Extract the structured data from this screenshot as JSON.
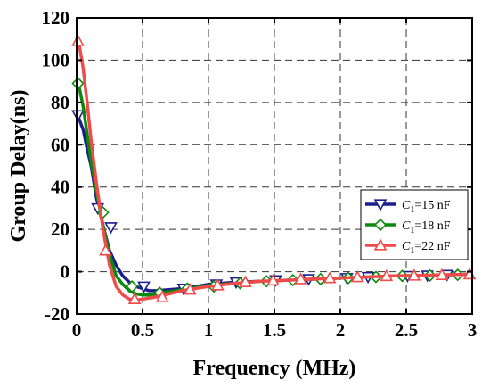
{
  "chart_data": {
    "type": "line",
    "xlabel": "Frequency (MHz)",
    "ylabel": "Group Delay(ns)",
    "xlim": [
      0,
      3
    ],
    "ylim": [
      -20,
      120
    ],
    "xticks": [
      0,
      0.5,
      1,
      1.5,
      2,
      2.5,
      3
    ],
    "xtick_labels": [
      "0",
      "0.5",
      "1",
      "1.5",
      "2",
      "2.5",
      "3"
    ],
    "yticks": [
      -20,
      0,
      20,
      40,
      60,
      80,
      100,
      120
    ],
    "ytick_labels": [
      "-20",
      "0",
      "20",
      "40",
      "60",
      "80",
      "100",
      "120"
    ],
    "grid": true,
    "legend_position": "right",
    "series": [
      {
        "name": "C1=15 nF",
        "name_var": "C",
        "name_sub": "1",
        "name_rest": "=15 nF",
        "color": "#1b1f8a",
        "marker": "triangle-down",
        "x": [
          0,
          0.02,
          0.05,
          0.08,
          0.11,
          0.15,
          0.2,
          0.25,
          0.3,
          0.35,
          0.4,
          0.45,
          0.5,
          0.55,
          0.6,
          0.7,
          0.8,
          0.9,
          1.0,
          1.2,
          1.4,
          1.6,
          1.8,
          2.0,
          2.2,
          2.4,
          2.6,
          2.8,
          3.0
        ],
        "y": [
          75,
          72,
          67,
          58,
          50,
          35,
          22,
          10,
          3,
          -2,
          -5,
          -7,
          -8,
          -9,
          -9,
          -8.5,
          -8,
          -7,
          -6,
          -5,
          -4.5,
          -4,
          -3.5,
          -3,
          -2.5,
          -2,
          -1.8,
          -1.5,
          -1.2
        ],
        "marker_x": [
          0.01,
          0.16,
          0.26,
          0.51,
          0.81,
          1.06,
          1.21,
          1.51,
          1.76,
          2.05,
          2.21,
          2.51,
          2.66,
          2.81
        ],
        "marker_y": [
          74,
          30,
          21,
          -7,
          -8,
          -6,
          -5,
          -4,
          -3.5,
          -3,
          -2.5,
          -2,
          -1.8,
          -1.5
        ]
      },
      {
        "name": "C1=18 nF",
        "name_var": "C",
        "name_sub": "1",
        "name_rest": "=18 nF",
        "color": "#0d8a0d",
        "marker": "diamond",
        "x": [
          0,
          0.02,
          0.05,
          0.08,
          0.11,
          0.15,
          0.2,
          0.25,
          0.3,
          0.35,
          0.4,
          0.45,
          0.5,
          0.55,
          0.6,
          0.7,
          0.8,
          0.9,
          1.0,
          1.2,
          1.4,
          1.6,
          1.8,
          2.0,
          2.2,
          2.4,
          2.6,
          2.8,
          3.0
        ],
        "y": [
          90,
          87,
          78,
          65,
          52,
          38,
          22,
          8,
          -2,
          -6,
          -9,
          -10.5,
          -11,
          -11,
          -10.5,
          -9.5,
          -8.5,
          -7.5,
          -6.5,
          -5.5,
          -4.5,
          -4,
          -3.5,
          -3,
          -2.5,
          -2,
          -1.8,
          -1.5,
          -1.2
        ],
        "marker_x": [
          0.01,
          0.2,
          0.42,
          0.63,
          0.84,
          1.04,
          1.24,
          1.44,
          1.64,
          1.85,
          2.06,
          2.27,
          2.47,
          2.68,
          2.89
        ],
        "marker_y": [
          89,
          28,
          -7,
          -10,
          -8,
          -7,
          -5.5,
          -4.5,
          -4,
          -3.5,
          -3,
          -2.5,
          -2,
          -1.8,
          -1.5
        ]
      },
      {
        "name": "C1=22 nF",
        "name_var": "C",
        "name_sub": "1",
        "name_rest": "=22 nF",
        "color": "#f04a4a",
        "marker": "triangle-up",
        "x": [
          0,
          0.02,
          0.05,
          0.08,
          0.11,
          0.15,
          0.2,
          0.25,
          0.3,
          0.35,
          0.4,
          0.45,
          0.5,
          0.55,
          0.6,
          0.7,
          0.8,
          0.9,
          1.0,
          1.2,
          1.4,
          1.6,
          1.8,
          2.0,
          2.2,
          2.4,
          2.6,
          2.8,
          3.0
        ],
        "y": [
          111,
          107,
          96,
          80,
          62,
          42,
          20,
          3,
          -7,
          -11,
          -13,
          -13.5,
          -13,
          -12.5,
          -12,
          -10.5,
          -9,
          -8,
          -7,
          -5.5,
          -4.5,
          -4,
          -3.5,
          -3,
          -2.5,
          -2,
          -1.8,
          -1.5,
          -1.2
        ],
        "marker_x": [
          0.01,
          0.22,
          0.44,
          0.65,
          0.86,
          1.07,
          1.28,
          1.49,
          1.7,
          1.92,
          2.13,
          2.35,
          2.56,
          2.77,
          2.98
        ],
        "marker_y": [
          109,
          10,
          -13,
          -12,
          -8.5,
          -6.5,
          -5,
          -4.2,
          -3.6,
          -3.1,
          -2.6,
          -2.1,
          -1.9,
          -1.6,
          -1.3
        ]
      }
    ]
  }
}
